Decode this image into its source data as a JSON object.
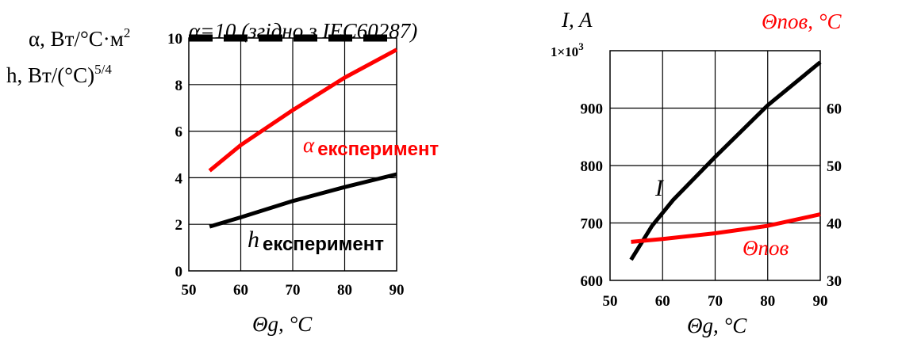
{
  "chart_data": [
    {
      "type": "line",
      "title": "α=10 (згідно з IEC60287)",
      "xlabel": "Θg, °C",
      "ylabel_alpha": "α, Вт/°С·м",
      "ylabel_alpha_sup": "2",
      "ylabel_h": "h, Вт/(°С)",
      "ylabel_h_sup": "5/4",
      "xlim": [
        50,
        90
      ],
      "ylim": [
        0,
        10
      ],
      "xticks": [
        "50",
        "60",
        "70",
        "80",
        "90"
      ],
      "yticks": [
        "0",
        "2",
        "4",
        "6",
        "8",
        "10"
      ],
      "grid": true,
      "series": [
        {
          "key": "alpha_ref",
          "x": [
            50,
            90
          ],
          "y": [
            10,
            10
          ],
          "color": "#000000",
          "dashed": true
        },
        {
          "key": "alpha_exp",
          "label_symbol": "α",
          "label_text": "експеримент",
          "x": [
            54,
            60,
            70,
            80,
            90
          ],
          "y": [
            4.3,
            5.4,
            6.9,
            8.3,
            9.5
          ],
          "color": "#ff0000"
        },
        {
          "key": "h_exp",
          "label_symbol": "h",
          "label_text": "експеримент",
          "x": [
            54,
            60,
            70,
            80,
            90
          ],
          "y": [
            1.9,
            2.3,
            3.0,
            3.6,
            4.15
          ],
          "color": "#000000"
        }
      ]
    },
    {
      "type": "line",
      "xlabel": "Θg, °C",
      "ylabel_left": "I, A",
      "ylabel_right": "Θпов, °С",
      "xlim": [
        50,
        90
      ],
      "ylim_left": [
        600,
        1000
      ],
      "ylim_right": [
        30,
        70
      ],
      "xticks": [
        "50",
        "60",
        "70",
        "80",
        "90"
      ],
      "yticks_left": [
        "600",
        "700",
        "800",
        "900"
      ],
      "ytop_label": "1×10",
      "ytop_label_sup": "3",
      "yticks_right": [
        "30",
        "40",
        "50",
        "60"
      ],
      "grid": true,
      "series": [
        {
          "key": "I",
          "label": "I",
          "axis": "left",
          "x": [
            54,
            58,
            62,
            70,
            80,
            90
          ],
          "y": [
            636,
            695,
            740,
            815,
            905,
            980
          ],
          "color": "#000000"
        },
        {
          "key": "theta_pov",
          "label": "Θпов",
          "axis": "right",
          "x": [
            54,
            60,
            70,
            80,
            90
          ],
          "y": [
            36.7,
            37.2,
            38.2,
            39.5,
            41.5
          ],
          "color": "#ff0000"
        }
      ]
    }
  ]
}
